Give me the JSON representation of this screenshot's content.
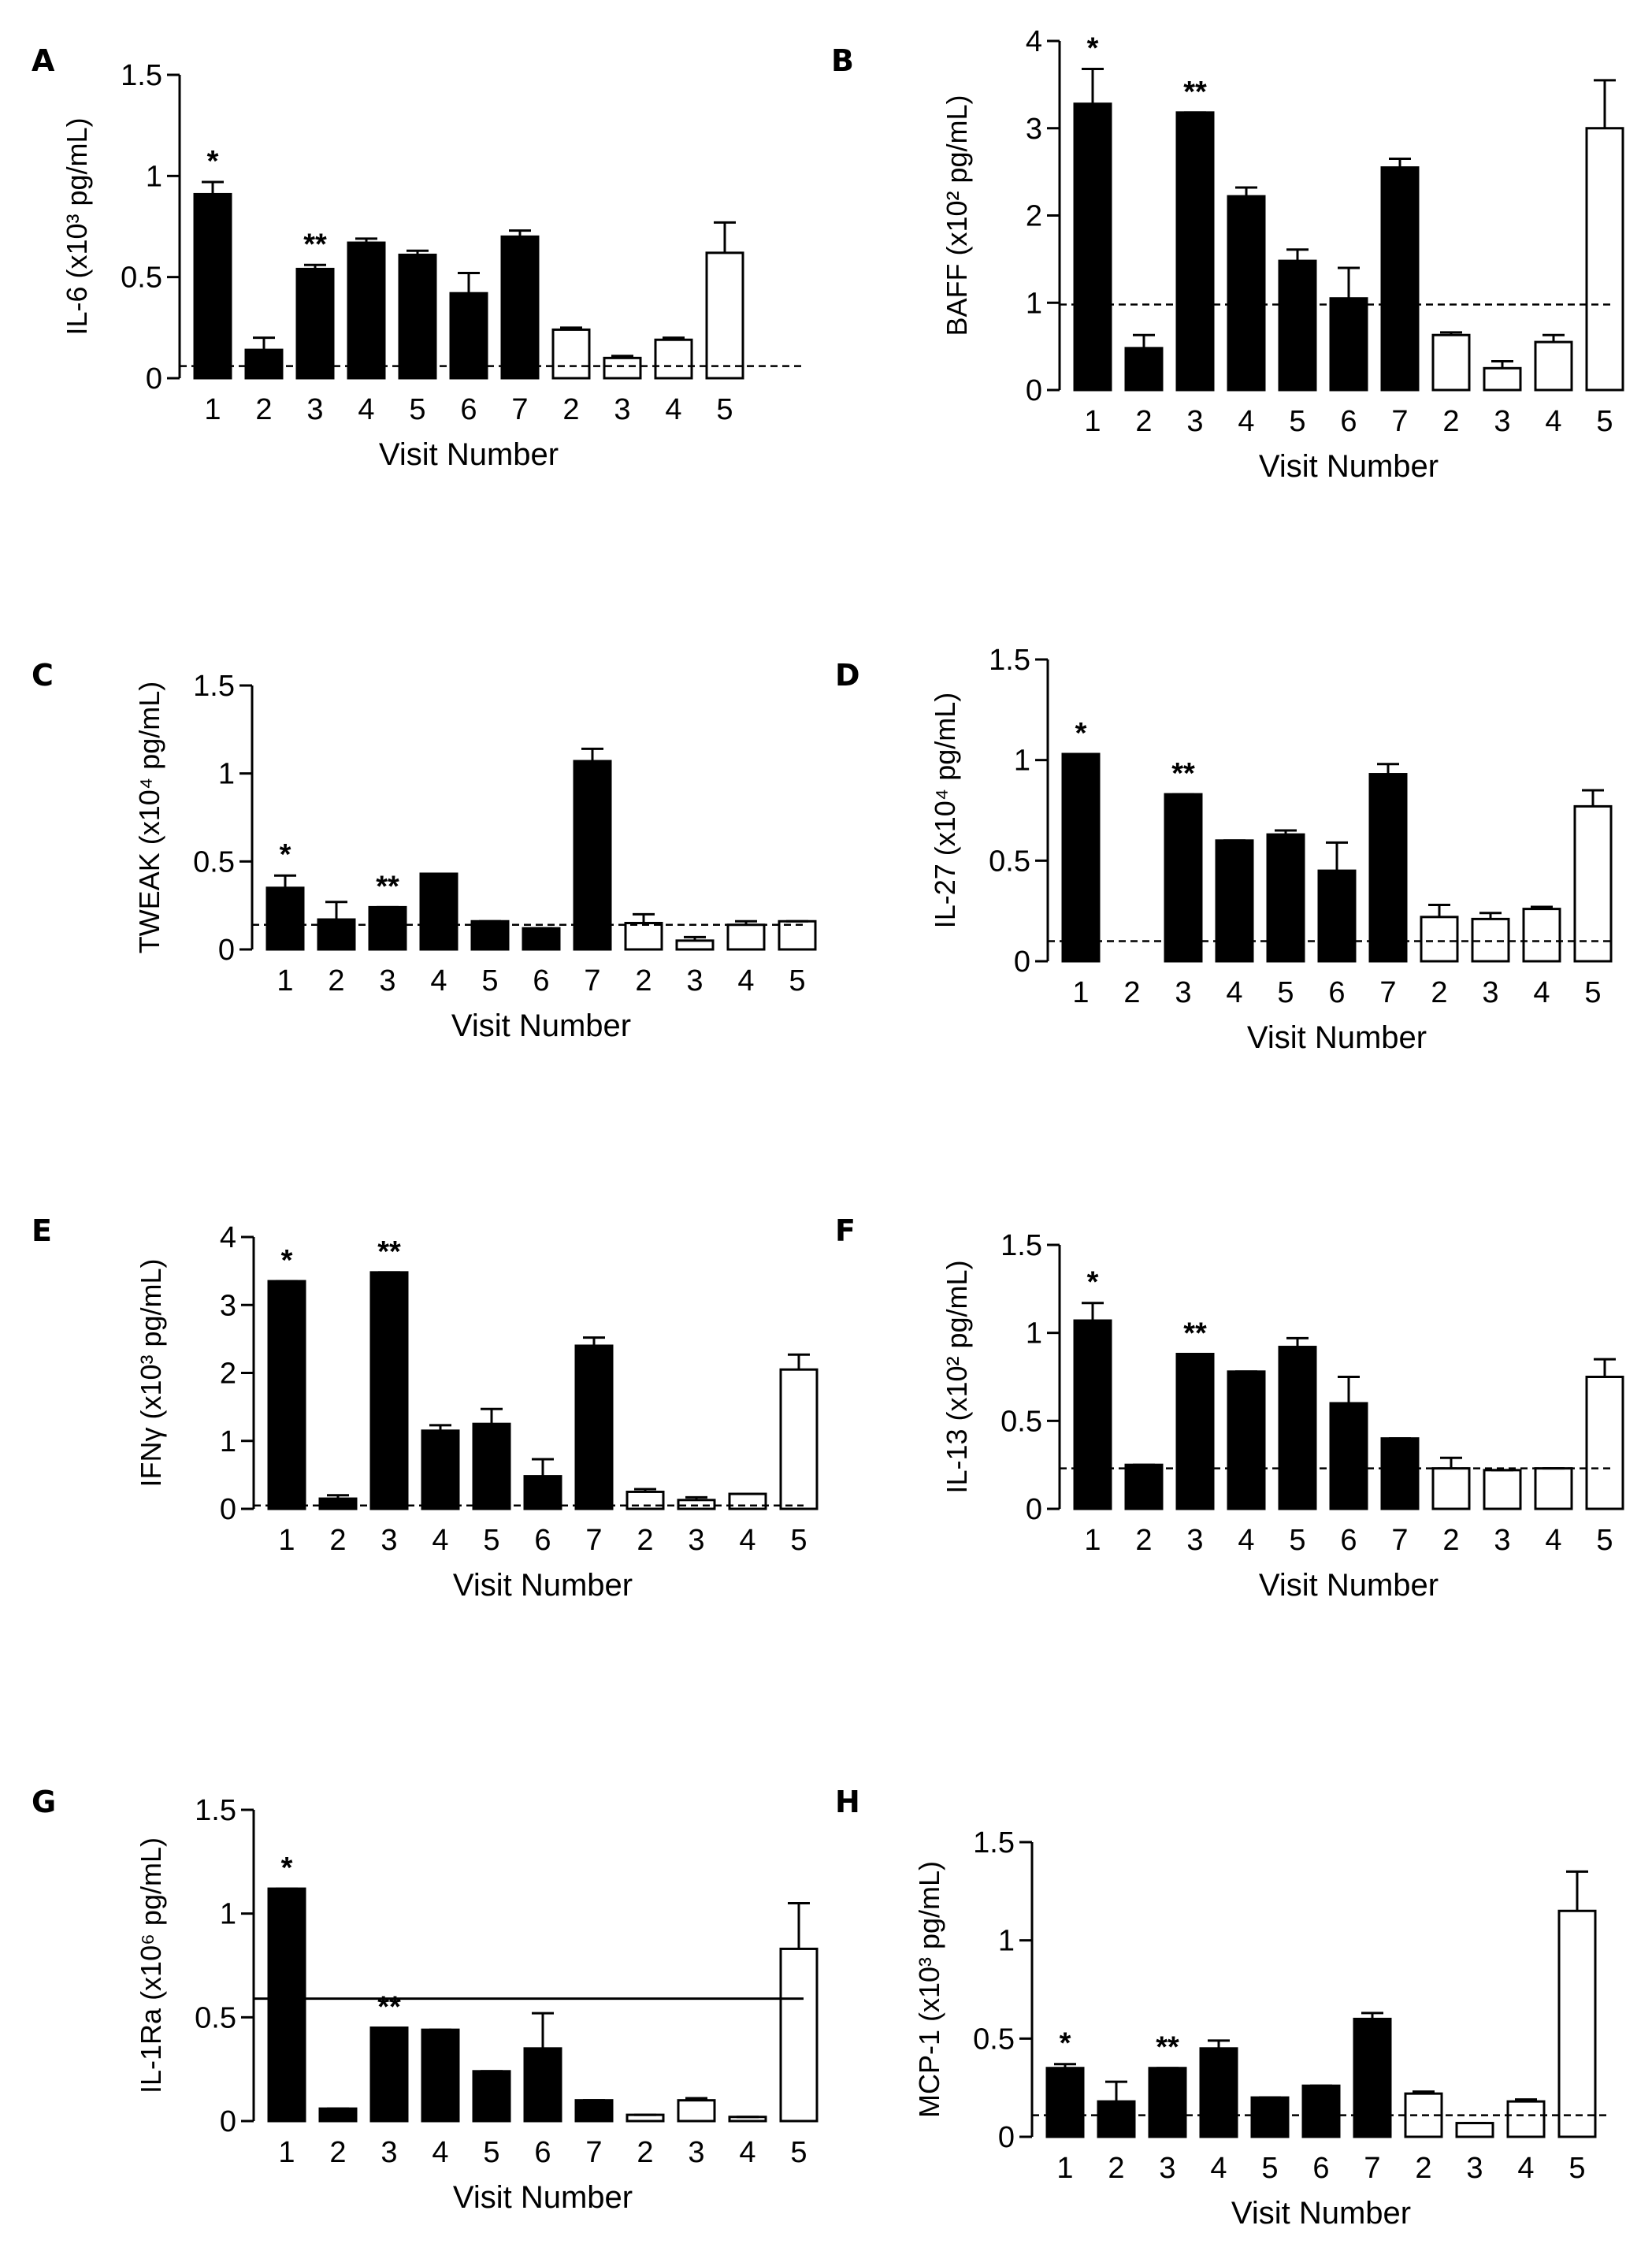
{
  "figure": {
    "xlabel_common": "Visit Number"
  },
  "chart_data": [
    {
      "type": "bar",
      "panel": "A",
      "ylabel": "IL-6 (x10³ pg/mL)",
      "xlabel": "Visit Number",
      "ylim": [
        0,
        1.5
      ],
      "yticks": [
        0,
        0.5,
        1,
        1.5
      ],
      "ytick_labels": [
        "0",
        "0.5",
        "1",
        "1.5"
      ],
      "categories": [
        "1",
        "2",
        "3",
        "4",
        "5",
        "6",
        "7",
        "2",
        "3",
        "4",
        "5"
      ],
      "fill": [
        "black",
        "black",
        "black",
        "black",
        "black",
        "black",
        "black",
        "white",
        "white",
        "white",
        "white"
      ],
      "values": [
        0.91,
        0.14,
        0.54,
        0.67,
        0.61,
        0.42,
        0.7,
        0.24,
        0.1,
        0.19,
        0.62
      ],
      "errors": [
        0.06,
        0.06,
        0.02,
        0.02,
        0.02,
        0.1,
        0.03,
        0.01,
        0.01,
        0.01,
        0.15
      ],
      "reference_line": {
        "value": 0.06,
        "style": "dashed"
      },
      "annotations": [
        {
          "bar": 0,
          "text": "*"
        },
        {
          "bar": 2,
          "text": "**"
        }
      ]
    },
    {
      "type": "bar",
      "panel": "B",
      "ylabel": "BAFF (x10² pg/mL)",
      "xlabel": "Visit Number",
      "ylim": [
        0,
        4
      ],
      "yticks": [
        0,
        1,
        2,
        3,
        4
      ],
      "ytick_labels": [
        "0",
        "1",
        "2",
        "3",
        "4"
      ],
      "categories": [
        "1",
        "2",
        "3",
        "4",
        "5",
        "6",
        "7",
        "2",
        "3",
        "4",
        "5"
      ],
      "fill": [
        "black",
        "black",
        "black",
        "black",
        "black",
        "black",
        "black",
        "white",
        "white",
        "white",
        "white"
      ],
      "values": [
        3.28,
        0.48,
        3.18,
        2.22,
        1.48,
        1.05,
        2.55,
        0.63,
        0.25,
        0.55,
        3.0
      ],
      "errors": [
        0.4,
        0.15,
        0.0,
        0.1,
        0.13,
        0.35,
        0.1,
        0.03,
        0.08,
        0.08,
        0.55
      ],
      "reference_line": {
        "value": 0.98,
        "style": "dashed"
      },
      "annotations": [
        {
          "bar": 0,
          "text": "*"
        },
        {
          "bar": 2,
          "text": "**"
        }
      ]
    },
    {
      "type": "bar",
      "panel": "C",
      "ylabel": "TWEAK (x10⁴ pg/mL)",
      "xlabel": "Visit Number",
      "ylim": [
        0,
        1.5
      ],
      "yticks": [
        0,
        0.5,
        1,
        1.5
      ],
      "ytick_labels": [
        "0",
        "0.5",
        "1",
        "1.5"
      ],
      "categories": [
        "1",
        "2",
        "3",
        "4",
        "5",
        "6",
        "7",
        "2",
        "3",
        "4",
        "5"
      ],
      "fill": [
        "black",
        "black",
        "black",
        "black",
        "black",
        "black",
        "black",
        "white",
        "white",
        "white",
        "white"
      ],
      "values": [
        0.35,
        0.17,
        0.24,
        0.43,
        0.16,
        0.12,
        1.07,
        0.15,
        0.05,
        0.14,
        0.16
      ],
      "errors": [
        0.07,
        0.1,
        0.0,
        0.0,
        0.0,
        0.0,
        0.07,
        0.05,
        0.02,
        0.02,
        0.0
      ],
      "reference_line": {
        "value": 0.14,
        "style": "dashed"
      },
      "annotations": [
        {
          "bar": 0,
          "text": "*"
        },
        {
          "bar": 2,
          "text": "**"
        }
      ]
    },
    {
      "type": "bar",
      "panel": "D",
      "ylabel": "IL-27 (x10⁴ pg/mL)",
      "xlabel": "Visit Number",
      "ylim": [
        0,
        1.5
      ],
      "yticks": [
        0,
        0.5,
        1,
        1.5
      ],
      "ytick_labels": [
        "0",
        "0.5",
        "1",
        "1.5"
      ],
      "categories": [
        "1",
        "2",
        "3",
        "4",
        "5",
        "6",
        "7",
        "2",
        "3",
        "4",
        "5"
      ],
      "fill": [
        "black",
        "black",
        "black",
        "black",
        "black",
        "black",
        "black",
        "white",
        "white",
        "white",
        "white"
      ],
      "values": [
        1.03,
        0.0,
        0.83,
        0.6,
        0.63,
        0.45,
        0.93,
        0.22,
        0.21,
        0.26,
        0.77
      ],
      "errors": [
        0.0,
        0.0,
        0.0,
        0.0,
        0.02,
        0.14,
        0.05,
        0.06,
        0.03,
        0.01,
        0.08
      ],
      "reference_line": {
        "value": 0.1,
        "style": "dashed"
      },
      "annotations": [
        {
          "bar": 0,
          "text": "*"
        },
        {
          "bar": 2,
          "text": "**"
        }
      ]
    },
    {
      "type": "bar",
      "panel": "E",
      "ylabel": "IFNγ (x10³ pg/mL)",
      "xlabel": "Visit Number",
      "ylim": [
        0,
        4
      ],
      "yticks": [
        0,
        1,
        2,
        3,
        4
      ],
      "ytick_labels": [
        "0",
        "1",
        "2",
        "3",
        "4"
      ],
      "categories": [
        "1",
        "2",
        "3",
        "4",
        "5",
        "6",
        "7",
        "2",
        "3",
        "4",
        "5"
      ],
      "fill": [
        "black",
        "black",
        "black",
        "black",
        "black",
        "black",
        "black",
        "white",
        "white",
        "white",
        "white"
      ],
      "values": [
        3.35,
        0.15,
        3.48,
        1.15,
        1.25,
        0.48,
        2.4,
        0.25,
        0.13,
        0.22,
        2.05
      ],
      "errors": [
        0.0,
        0.05,
        0.0,
        0.08,
        0.22,
        0.25,
        0.12,
        0.04,
        0.04,
        0.0,
        0.22
      ],
      "reference_line": {
        "value": 0.05,
        "style": "dashed"
      },
      "annotations": [
        {
          "bar": 0,
          "text": "*"
        },
        {
          "bar": 2,
          "text": "**"
        }
      ]
    },
    {
      "type": "bar",
      "panel": "F",
      "ylabel": "IL-13 (x10² pg/mL)",
      "xlabel": "Visit Number",
      "ylim": [
        0,
        1.5
      ],
      "yticks": [
        0,
        0.5,
        1,
        1.5
      ],
      "ytick_labels": [
        "0",
        "0.5",
        "1",
        "1.5"
      ],
      "categories": [
        "1",
        "2",
        "3",
        "4",
        "5",
        "6",
        "7",
        "2",
        "3",
        "4",
        "5"
      ],
      "fill": [
        "black",
        "black",
        "black",
        "black",
        "black",
        "black",
        "black",
        "white",
        "white",
        "white",
        "white"
      ],
      "values": [
        1.07,
        0.25,
        0.88,
        0.78,
        0.92,
        0.6,
        0.4,
        0.23,
        0.22,
        0.23,
        0.75
      ],
      "errors": [
        0.1,
        0.0,
        0.0,
        0.0,
        0.05,
        0.15,
        0.0,
        0.06,
        0.0,
        0.0,
        0.1
      ],
      "reference_line": {
        "value": 0.23,
        "style": "dashed"
      },
      "annotations": [
        {
          "bar": 0,
          "text": "*"
        },
        {
          "bar": 2,
          "text": "**"
        }
      ]
    },
    {
      "type": "bar",
      "panel": "G",
      "ylabel": "IL-1Ra (x10⁶ pg/mL)",
      "xlabel": "Visit Number",
      "ylim": [
        0,
        1.5
      ],
      "yticks": [
        0,
        0.5,
        1,
        1.5
      ],
      "ytick_labels": [
        "0",
        "0.5",
        "1",
        "1.5"
      ],
      "categories": [
        "1",
        "2",
        "3",
        "4",
        "5",
        "6",
        "7",
        "2",
        "3",
        "4",
        "5"
      ],
      "fill": [
        "black",
        "black",
        "black",
        "black",
        "black",
        "black",
        "black",
        "white",
        "white",
        "white",
        "white"
      ],
      "values": [
        1.12,
        0.06,
        0.45,
        0.44,
        0.24,
        0.35,
        0.1,
        0.03,
        0.1,
        0.02,
        0.83
      ],
      "errors": [
        0.0,
        0.0,
        0.0,
        0.0,
        0.0,
        0.17,
        0.0,
        0.0,
        0.01,
        0.0,
        0.22
      ],
      "reference_line": {
        "value": 0.59,
        "style": "solid"
      },
      "annotations": [
        {
          "bar": 0,
          "text": "*"
        },
        {
          "bar": 2,
          "text": "**"
        }
      ]
    },
    {
      "type": "bar",
      "panel": "H",
      "ylabel": "MCP-1 (x10³ pg/mL)",
      "xlabel": "Visit Number",
      "ylim": [
        0,
        1.5
      ],
      "yticks": [
        0,
        0.5,
        1,
        1.5
      ],
      "ytick_labels": [
        "0",
        "0.5",
        "1",
        "1.5"
      ],
      "categories": [
        "1",
        "2",
        "3",
        "4",
        "5",
        "6",
        "7",
        "2",
        "3",
        "4",
        "5"
      ],
      "fill": [
        "black",
        "black",
        "black",
        "black",
        "black",
        "black",
        "black",
        "white",
        "white",
        "white",
        "white"
      ],
      "values": [
        0.35,
        0.18,
        0.35,
        0.45,
        0.2,
        0.26,
        0.6,
        0.22,
        0.07,
        0.18,
        1.15
      ],
      "errors": [
        0.02,
        0.1,
        0.0,
        0.04,
        0.0,
        0.0,
        0.03,
        0.01,
        0.0,
        0.01,
        0.2
      ],
      "reference_line": {
        "value": 0.11,
        "style": "dashed"
      },
      "annotations": [
        {
          "bar": 0,
          "text": "*"
        },
        {
          "bar": 2,
          "text": "**"
        }
      ]
    }
  ]
}
